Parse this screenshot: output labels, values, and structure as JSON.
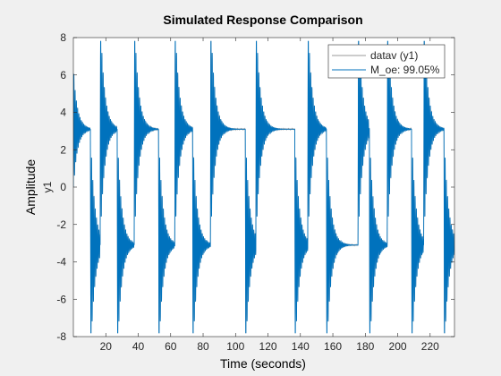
{
  "figure": {
    "window_background": "#f0f0f0",
    "axes_background": "#ffffff"
  },
  "chart_data": {
    "type": "line",
    "title": "Simulated Response Comparison",
    "xlabel": "Time (seconds)",
    "ylabel": "Amplitude",
    "channel_label": "y1",
    "xlim": [
      0,
      235
    ],
    "ylim": [
      -8,
      8
    ],
    "x_ticks": [
      20,
      40,
      60,
      80,
      100,
      120,
      140,
      160,
      180,
      200,
      220
    ],
    "y_ticks": [
      -8,
      -6,
      -4,
      -2,
      0,
      2,
      4,
      6,
      8
    ],
    "grid": false,
    "legend_position": "top-right",
    "series": [
      {
        "name": "datav (y1)",
        "color": "#9a9a9a"
      },
      {
        "name": "M_oe: 99.05%",
        "color": "#0072bd"
      }
    ],
    "signal": {
      "description": "square-wave driven oscillating step response",
      "steady_levels": [
        3.1,
        -3.1
      ],
      "transition_times": [
        0,
        10.5,
        16.5,
        27,
        37.5,
        52.5,
        62.5,
        73.5,
        84.5,
        106,
        112.5,
        136.5,
        144.5,
        156,
        175.5,
        182.5,
        193.5,
        208.5,
        216,
        228.5
      ],
      "transition_signs": [
        1,
        -1,
        1,
        -1,
        1,
        -1,
        1,
        -1,
        1,
        -1,
        1,
        -1,
        1,
        -1,
        1,
        -1,
        1,
        -1,
        1,
        -1
      ],
      "peak_overshoot": [
        6.2,
        -6.2
      ],
      "time_constant_s": 2.6,
      "oscillation_period_s": 0.75
    }
  }
}
